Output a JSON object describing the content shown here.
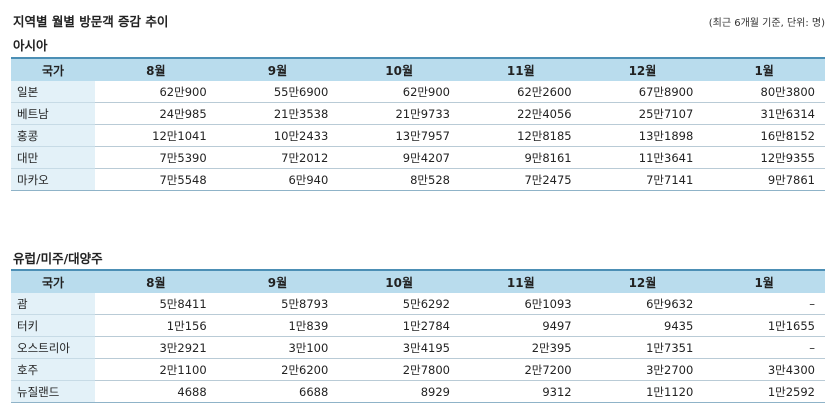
{
  "title": "지역별 월별 방문객 증감 추이",
  "note": "(최근 6개월 기준, 단위: 명)",
  "tables": [
    {
      "section": "아시아",
      "headers": [
        "국가",
        "8월",
        "9월",
        "10월",
        "11월",
        "12월",
        "1월"
      ],
      "rows": [
        {
          "country": "일본",
          "values": [
            "62만900",
            "55만6900",
            "62만900",
            "62만2600",
            "67만8900",
            "80만3800"
          ]
        },
        {
          "country": "베트남",
          "values": [
            "24만985",
            "21만3538",
            "21만9733",
            "22만4056",
            "25만7107",
            "31만6314"
          ]
        },
        {
          "country": "홍콩",
          "values": [
            "12만1041",
            "10만2433",
            "13만7957",
            "12만8185",
            "13만1898",
            "16만8152"
          ]
        },
        {
          "country": "대만",
          "values": [
            "7만5390",
            "7만2012",
            "9만4207",
            "9만8161",
            "11만3641",
            "12만9355"
          ]
        },
        {
          "country": "마카오",
          "values": [
            "7만5548",
            "6만940",
            "8만528",
            "7만2475",
            "7만7141",
            "9만7861"
          ]
        }
      ]
    },
    {
      "section": "유럽/미주/대양주",
      "headers": [
        "국가",
        "8월",
        "9월",
        "10월",
        "11월",
        "12월",
        "1월"
      ],
      "rows": [
        {
          "country": "괌",
          "values": [
            "5만8411",
            "5만8793",
            "5만6292",
            "6만1093",
            "6만9632",
            "–"
          ]
        },
        {
          "country": "터키",
          "values": [
            "1만156",
            "1만839",
            "1만2784",
            "9497",
            "9435",
            "1만1655"
          ]
        },
        {
          "country": "오스트리아",
          "values": [
            "3만2921",
            "3만100",
            "3만4195",
            "2만395",
            "1만7351",
            "–"
          ]
        },
        {
          "country": "호주",
          "values": [
            "2만1100",
            "2만6200",
            "2만7800",
            "2만7200",
            "3만2700",
            "3만4300"
          ]
        },
        {
          "country": "뉴질랜드",
          "values": [
            "4688",
            "6688",
            "8929",
            "9312",
            "1만1120",
            "1만2592"
          ]
        }
      ]
    }
  ]
}
